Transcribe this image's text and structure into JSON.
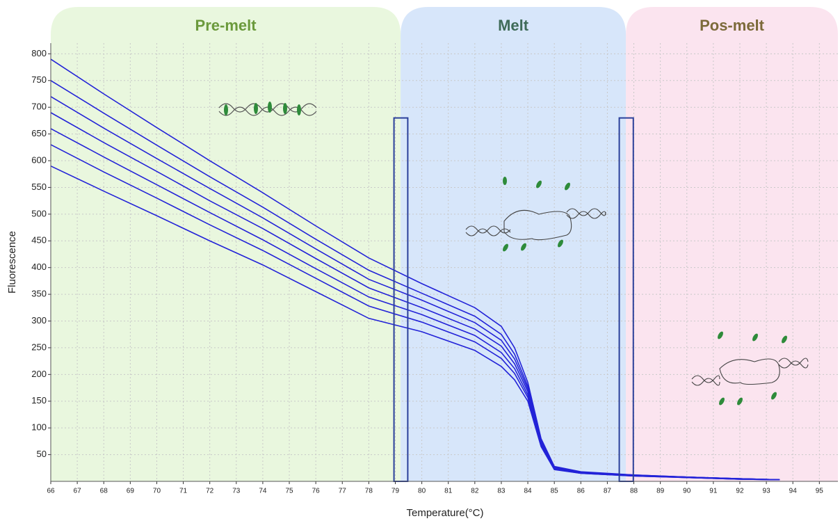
{
  "chart_data": {
    "type": "line",
    "x_label": "Temperature(°C)",
    "y_label": "Fluorescence",
    "xlim": [
      66,
      95.7
    ],
    "ylim": [
      0,
      820
    ],
    "xticks": [
      66,
      67,
      68,
      69,
      70,
      71,
      72,
      73,
      74,
      75,
      76,
      77,
      78,
      79,
      80,
      81,
      82,
      83,
      84,
      85,
      86,
      87,
      88,
      89,
      90,
      91,
      92,
      93,
      94,
      95
    ],
    "yticks": [
      50,
      100,
      150,
      200,
      250,
      300,
      350,
      400,
      450,
      500,
      550,
      600,
      650,
      700,
      750,
      800
    ],
    "grid": true,
    "regions": [
      {
        "label": "Pre-melt",
        "x": [
          66,
          79.2
        ],
        "color": "#e9f7de",
        "label_color": "#6b9a3c"
      },
      {
        "label": "Melt",
        "x": [
          79.2,
          87.7
        ],
        "color": "#d7e6fa",
        "label_color": "#3f6b58"
      },
      {
        "label": "Pos-melt",
        "x": [
          87.7,
          95.7
        ],
        "color": "#fbe4ef",
        "label_color": "#7c6a3a"
      }
    ],
    "cursors": [
      {
        "x": [
          78.95,
          79.47
        ],
        "top": 680
      },
      {
        "x": [
          87.45,
          87.98
        ],
        "top": 680
      }
    ],
    "x": [
      66,
      68,
      70,
      72,
      74,
      76,
      78,
      80,
      82,
      83,
      83.5,
      84,
      84.5,
      85,
      86,
      88,
      90,
      92,
      93.5
    ],
    "series": [
      {
        "color": "#2323d8",
        "values": [
          790,
          725,
          662,
          600,
          540,
          478,
          418,
          370,
          325,
          290,
          250,
          185,
          80,
          28,
          18,
          12,
          8,
          5,
          3
        ]
      },
      {
        "color": "#2323d8",
        "values": [
          750,
          689,
          629,
          570,
          513,
          453,
          395,
          352,
          309,
          275,
          238,
          178,
          77,
          27,
          17,
          12,
          8,
          5,
          3
        ]
      },
      {
        "color": "#2323d8",
        "values": [
          720,
          661,
          604,
          548,
          493,
          435,
          378,
          339,
          297,
          264,
          229,
          173,
          75,
          26,
          17,
          11,
          8,
          5,
          3
        ]
      },
      {
        "color": "#2323d8",
        "values": [
          690,
          634,
          580,
          525,
          473,
          417,
          362,
          325,
          285,
          253,
          220,
          168,
          73,
          25,
          17,
          11,
          8,
          5,
          3
        ]
      },
      {
        "color": "#2323d8",
        "values": [
          660,
          607,
          555,
          503,
          452,
          398,
          345,
          312,
          273,
          241,
          211,
          162,
          70,
          24,
          16,
          11,
          7,
          4,
          3
        ]
      },
      {
        "color": "#2323d8",
        "values": [
          630,
          579,
          530,
          480,
          432,
          380,
          328,
          298,
          261,
          230,
          202,
          157,
          68,
          23,
          15,
          10,
          7,
          4,
          3
        ]
      },
      {
        "color": "#2323d8",
        "values": [
          590,
          543,
          497,
          450,
          405,
          355,
          305,
          280,
          245,
          215,
          190,
          150,
          65,
          22,
          15,
          10,
          7,
          4,
          3
        ]
      }
    ]
  }
}
